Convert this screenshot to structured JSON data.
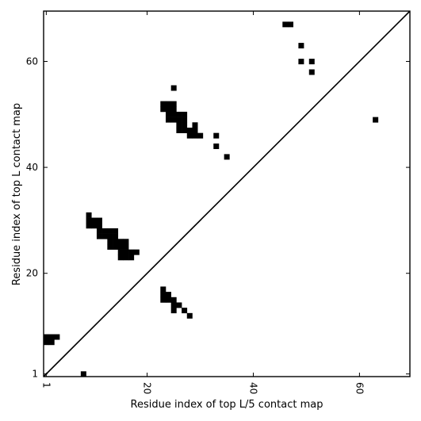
{
  "chart_data": {
    "type": "heatmap",
    "title": "",
    "xlabel": "Residue index of top L/5 contact map",
    "ylabel": "Residue index of top L contact map",
    "xlim": [
      0.5,
      69.5
    ],
    "ylim": [
      0.5,
      69.5
    ],
    "xticks": [
      1,
      20,
      40,
      60
    ],
    "yticks": [
      1,
      20,
      40,
      60
    ],
    "diagonal": true,
    "colors": {
      "contact": "#000000",
      "background": "#ffffff"
    },
    "contacts_upper": [
      [
        46,
        67
      ],
      [
        47,
        67
      ],
      [
        49,
        63
      ],
      [
        49,
        60
      ],
      [
        51,
        60
      ],
      [
        51,
        58
      ],
      [
        63,
        49
      ],
      [
        25,
        55
      ],
      [
        23,
        52
      ],
      [
        24,
        52
      ],
      [
        25,
        52
      ],
      [
        23,
        51
      ],
      [
        24,
        51
      ],
      [
        25,
        51
      ],
      [
        24,
        50
      ],
      [
        25,
        50
      ],
      [
        26,
        50
      ],
      [
        27,
        50
      ],
      [
        24,
        49
      ],
      [
        25,
        49
      ],
      [
        26,
        49
      ],
      [
        27,
        49
      ],
      [
        26,
        48
      ],
      [
        27,
        48
      ],
      [
        29,
        48
      ],
      [
        26,
        47
      ],
      [
        27,
        47
      ],
      [
        28,
        47
      ],
      [
        29,
        47
      ],
      [
        28,
        46
      ],
      [
        29,
        46
      ],
      [
        30,
        46
      ],
      [
        33,
        46
      ],
      [
        33,
        44
      ],
      [
        35,
        42
      ],
      [
        9,
        31
      ],
      [
        9,
        30
      ],
      [
        10,
        30
      ],
      [
        11,
        30
      ],
      [
        9,
        29
      ],
      [
        10,
        29
      ],
      [
        11,
        29
      ],
      [
        11,
        28
      ],
      [
        12,
        28
      ],
      [
        13,
        28
      ],
      [
        14,
        28
      ],
      [
        11,
        27
      ],
      [
        12,
        27
      ],
      [
        13,
        27
      ],
      [
        14,
        27
      ],
      [
        13,
        26
      ],
      [
        14,
        26
      ],
      [
        15,
        26
      ],
      [
        16,
        26
      ],
      [
        13,
        25
      ],
      [
        14,
        25
      ],
      [
        15,
        25
      ],
      [
        16,
        25
      ],
      [
        15,
        24
      ],
      [
        16,
        24
      ],
      [
        17,
        24
      ],
      [
        18,
        24
      ],
      [
        15,
        23
      ],
      [
        16,
        23
      ],
      [
        17,
        23
      ]
    ],
    "contacts_lower": [
      [
        1,
        8
      ],
      [
        2,
        8
      ],
      [
        3,
        8
      ],
      [
        1,
        7
      ],
      [
        2,
        7
      ],
      [
        8,
        1
      ],
      [
        23,
        17
      ],
      [
        23,
        16
      ],
      [
        24,
        16
      ],
      [
        23,
        15
      ],
      [
        24,
        15
      ],
      [
        25,
        15
      ],
      [
        25,
        14
      ],
      [
        26,
        14
      ],
      [
        25,
        13
      ],
      [
        27,
        13
      ],
      [
        28,
        12
      ]
    ]
  }
}
